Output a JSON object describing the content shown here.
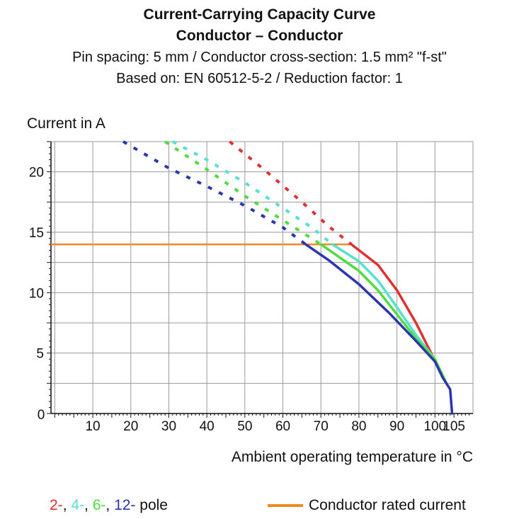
{
  "chart_data": {
    "type": "line",
    "title": "Current-Carrying Capacity Curve",
    "subtitle": "Conductor – Conductor",
    "info_line_1": "Pin spacing: 5 mm / Conductor cross-section: 1.5 mm² \"f-st\"",
    "info_line_2": "Based on: EN 60512-5-2 / Reduction factor: 1",
    "ylabel": "Current in A",
    "xlabel": "Ambient operating temperature in °C",
    "xlim": [
      -1,
      110
    ],
    "ylim": [
      0,
      22.5
    ],
    "x_ticks": [
      10,
      20,
      30,
      40,
      50,
      60,
      70,
      80,
      90,
      100,
      105
    ],
    "y_ticks": [
      0,
      5,
      10,
      15,
      20
    ],
    "grid": true,
    "rated_current": {
      "label": "Conductor rated current",
      "value": 14,
      "color": "#f08a20"
    },
    "legend": {
      "parts": [
        {
          "text": "2-",
          "color": "#e03030"
        },
        {
          "text": ", ",
          "color": "#111111"
        },
        {
          "text": "4-",
          "color": "#58e0d0"
        },
        {
          "text": ", ",
          "color": "#111111"
        },
        {
          "text": "6-",
          "color": "#50dc40"
        },
        {
          "text": ", ",
          "color": "#111111"
        },
        {
          "text": "12-",
          "color": "#2a35b0"
        },
        {
          "text": " pole",
          "color": "#111111"
        }
      ],
      "position": "bottom"
    },
    "series": [
      {
        "key": "2-pole",
        "color": "#e03030",
        "dashed": [
          [
            46,
            22.5
          ],
          [
            55,
            20.2
          ],
          [
            65,
            17.5
          ],
          [
            72,
            15.5
          ],
          [
            78,
            14
          ]
        ],
        "solid": [
          [
            78,
            14
          ],
          [
            85,
            12.3
          ],
          [
            90,
            10.2
          ],
          [
            95,
            7.5
          ],
          [
            99,
            5
          ],
          [
            102,
            3
          ]
        ]
      },
      {
        "key": "4-pole",
        "color": "#58e0d0",
        "dashed": [
          [
            31,
            22.5
          ],
          [
            40,
            21
          ],
          [
            50,
            19.1
          ],
          [
            60,
            17
          ],
          [
            68,
            15.3
          ],
          [
            73,
            14
          ]
        ],
        "solid": [
          [
            73,
            14
          ],
          [
            80,
            12.6
          ],
          [
            85,
            11
          ],
          [
            90,
            8.8
          ],
          [
            95,
            6.5
          ],
          [
            100,
            4.5
          ],
          [
            103,
            2.5
          ]
        ]
      },
      {
        "key": "6-pole",
        "color": "#50dc40",
        "dashed": [
          [
            29,
            22.5
          ],
          [
            40,
            20.2
          ],
          [
            50,
            18
          ],
          [
            60,
            16
          ],
          [
            70,
            14
          ]
        ],
        "solid": [
          [
            70,
            14
          ],
          [
            80,
            11.8
          ],
          [
            85,
            10.2
          ],
          [
            90,
            8.2
          ],
          [
            95,
            6.2
          ],
          [
            100,
            4.5
          ],
          [
            103,
            2.5
          ]
        ]
      },
      {
        "key": "12-pole",
        "color": "#2a35b0",
        "dashed": [
          [
            18,
            22.5
          ],
          [
            30,
            20.3
          ],
          [
            40,
            18.8
          ],
          [
            50,
            17.2
          ],
          [
            60,
            15.4
          ],
          [
            66,
            14
          ]
        ],
        "solid": [
          [
            66,
            14
          ],
          [
            72,
            12.7
          ],
          [
            80,
            10.7
          ],
          [
            88,
            8.3
          ],
          [
            95,
            6
          ],
          [
            100,
            4.3
          ],
          [
            102,
            3
          ],
          [
            104,
            2
          ],
          [
            104.5,
            0
          ]
        ]
      }
    ]
  }
}
